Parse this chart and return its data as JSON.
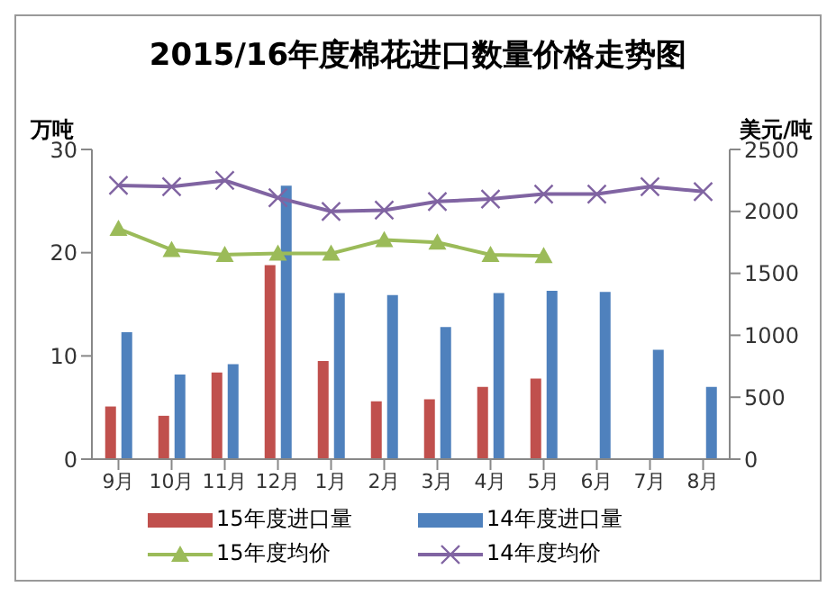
{
  "chart_data": {
    "type": "bar",
    "title": "2015/16年度棉花进口数量价格走势图",
    "ylabel": "万吨",
    "y2label": "美元/吨",
    "categories": [
      "9月",
      "10月",
      "11月",
      "12月",
      "1月",
      "2月",
      "3月",
      "4月",
      "5月",
      "6月",
      "7月",
      "8月"
    ],
    "series": [
      {
        "name": "15年度进口量",
        "color": "#c0504d",
        "values": [
          5.1,
          4.2,
          8.4,
          18.8,
          9.5,
          5.6,
          5.8,
          7.0,
          7.8,
          null,
          null,
          null
        ]
      },
      {
        "name": "14年度进口量",
        "color": "#4f81bd",
        "values": [
          12.3,
          8.2,
          9.2,
          26.5,
          16.1,
          15.9,
          12.8,
          16.1,
          16.3,
          16.2,
          10.6,
          7.0
        ]
      },
      {
        "name": "15年度均价",
        "type": "line",
        "axis": "y2",
        "marker": "triangle",
        "color": "#9bbb59",
        "values": [
          1860,
          1690,
          1650,
          1660,
          1660,
          1770,
          1750,
          1650,
          1640,
          null,
          null,
          null
        ]
      },
      {
        "name": "14年度均价",
        "type": "line",
        "axis": "y2",
        "marker": "cross",
        "color": "#8064a2",
        "values": [
          2210,
          2200,
          2250,
          2110,
          2000,
          2010,
          2080,
          2100,
          2140,
          2140,
          2200,
          2160
        ]
      }
    ],
    "ylim": [
      0,
      30
    ],
    "yticks": [
      0,
      10,
      20,
      30
    ],
    "y2lim": [
      0,
      2500
    ],
    "y2ticks": [
      0,
      500,
      1000,
      1500,
      2000,
      2500
    ],
    "grid": false,
    "legend": "bottom"
  }
}
